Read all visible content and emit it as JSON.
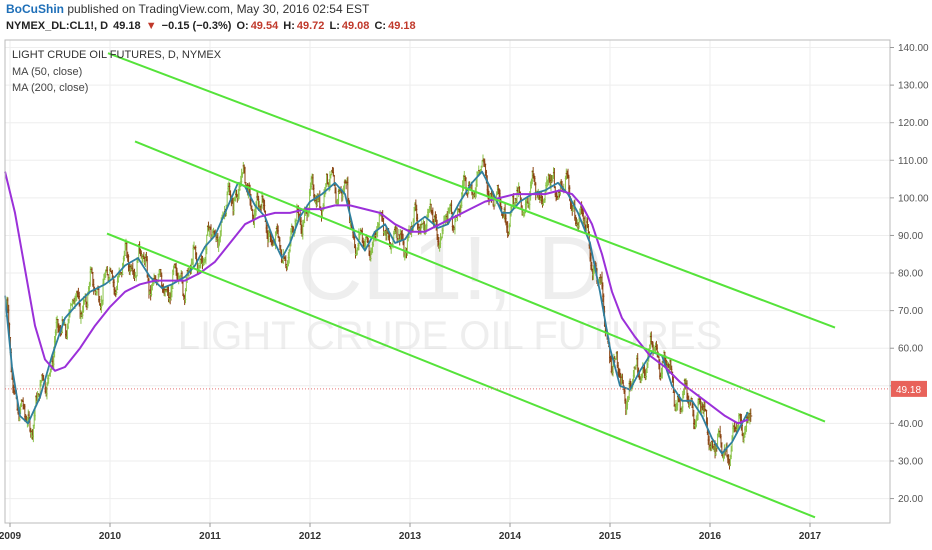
{
  "header": {
    "author": "BoCuShin",
    "published_text": "published on TradingView.com, May 30, 2016 02:54 EST"
  },
  "quote": {
    "symbol": "NYMEX_DL:CL1!, D",
    "last": "49.18",
    "arrow": "▼",
    "change": "−0.15 (−0.3%)",
    "open_label": "O:",
    "open": "49.54",
    "high_label": "H:",
    "high": "49.72",
    "low_label": "L:",
    "low": "49.08",
    "close_label": "C:",
    "close": "49.18"
  },
  "colors": {
    "up_bar": "#8bc34a",
    "down_bar": "#8b4513",
    "ma50": "#2f7f9e",
    "ma200": "#9b30d9",
    "channel": "#55e33a",
    "price_line": "#e57373",
    "price_label_bg": "#e8625a"
  },
  "chart_data": {
    "type": "line",
    "title": "LIGHT CRUDE OIL FUTURES, D, NYMEX",
    "watermark": {
      "symbol": "CL1!, D",
      "name": "LIGHT CRUDE OIL FUTURES"
    },
    "y_axis": {
      "range": [
        13.5,
        142
      ],
      "ticks": [
        {
          "value": 20,
          "label": "20.00"
        },
        {
          "value": 30,
          "label": "30.00"
        },
        {
          "value": 40,
          "label": "40.00"
        },
        {
          "value": 50,
          "label": "50.00"
        },
        {
          "value": 60,
          "label": "60.00"
        },
        {
          "value": 70,
          "label": "70.00"
        },
        {
          "value": 80,
          "label": "80.00"
        },
        {
          "value": 90,
          "label": "90.00"
        },
        {
          "value": 100,
          "label": "100.00"
        },
        {
          "value": 110,
          "label": "110.00"
        },
        {
          "value": 120,
          "label": "120.00"
        },
        {
          "value": 130,
          "label": "130.00"
        },
        {
          "value": 140,
          "label": "140.00"
        }
      ]
    },
    "x_axis": {
      "range": [
        2008.95,
        2017.8
      ],
      "ticks": [
        {
          "value": 2009,
          "label": "2009"
        },
        {
          "value": 2010,
          "label": "2010"
        },
        {
          "value": 2011,
          "label": "2011"
        },
        {
          "value": 2012,
          "label": "2012"
        },
        {
          "value": 2013,
          "label": "2013"
        },
        {
          "value": 2014,
          "label": "2014"
        },
        {
          "value": 2015,
          "label": "2015"
        },
        {
          "value": 2016,
          "label": "2016"
        },
        {
          "value": 2017,
          "label": "2017"
        }
      ]
    },
    "grid": true,
    "last_price": {
      "value": 49.18,
      "label": "49.18"
    },
    "series": [
      {
        "name": "MA (50, close)",
        "points": [
          [
            2008.95,
            74
          ],
          [
            2009.02,
            55
          ],
          [
            2009.1,
            42
          ],
          [
            2009.18,
            40
          ],
          [
            2009.3,
            47
          ],
          [
            2009.42,
            58
          ],
          [
            2009.55,
            68
          ],
          [
            2009.68,
            72
          ],
          [
            2009.8,
            75
          ],
          [
            2009.95,
            77
          ],
          [
            2010.05,
            79
          ],
          [
            2010.15,
            82
          ],
          [
            2010.28,
            84
          ],
          [
            2010.4,
            79
          ],
          [
            2010.52,
            76
          ],
          [
            2010.62,
            77
          ],
          [
            2010.75,
            79
          ],
          [
            2010.85,
            82
          ],
          [
            2010.95,
            87
          ],
          [
            2011.05,
            90
          ],
          [
            2011.15,
            96
          ],
          [
            2011.28,
            104
          ],
          [
            2011.35,
            103
          ],
          [
            2011.45,
            98
          ],
          [
            2011.55,
            95
          ],
          [
            2011.65,
            88
          ],
          [
            2011.72,
            84
          ],
          [
            2011.8,
            88
          ],
          [
            2011.9,
            95
          ],
          [
            2012.0,
            99
          ],
          [
            2012.12,
            101
          ],
          [
            2012.25,
            104
          ],
          [
            2012.35,
            101
          ],
          [
            2012.45,
            90
          ],
          [
            2012.55,
            86
          ],
          [
            2012.65,
            91
          ],
          [
            2012.75,
            93
          ],
          [
            2012.85,
            88
          ],
          [
            2012.95,
            89
          ],
          [
            2013.05,
            93
          ],
          [
            2013.15,
            95
          ],
          [
            2013.28,
            92
          ],
          [
            2013.38,
            93
          ],
          [
            2013.5,
            99
          ],
          [
            2013.62,
            104
          ],
          [
            2013.72,
            107
          ],
          [
            2013.82,
            102
          ],
          [
            2013.92,
            96
          ],
          [
            2014.0,
            96
          ],
          [
            2014.1,
            99
          ],
          [
            2014.22,
            101
          ],
          [
            2014.35,
            102
          ],
          [
            2014.48,
            104
          ],
          [
            2014.58,
            101
          ],
          [
            2014.68,
            96
          ],
          [
            2014.8,
            88
          ],
          [
            2014.9,
            75
          ],
          [
            2015.0,
            60
          ],
          [
            2015.1,
            50
          ],
          [
            2015.2,
            49
          ],
          [
            2015.3,
            54
          ],
          [
            2015.42,
            59
          ],
          [
            2015.52,
            58
          ],
          [
            2015.62,
            50
          ],
          [
            2015.72,
            46
          ],
          [
            2015.82,
            46
          ],
          [
            2015.92,
            42
          ],
          [
            2016.02,
            36
          ],
          [
            2016.12,
            32
          ],
          [
            2016.22,
            35
          ],
          [
            2016.3,
            39
          ],
          [
            2016.38,
            43
          ]
        ]
      },
      {
        "name": "MA (200, close)",
        "points": [
          [
            2008.95,
            107
          ],
          [
            2009.05,
            96
          ],
          [
            2009.15,
            81
          ],
          [
            2009.25,
            66
          ],
          [
            2009.35,
            57
          ],
          [
            2009.45,
            54
          ],
          [
            2009.55,
            55
          ],
          [
            2009.7,
            60
          ],
          [
            2009.85,
            66
          ],
          [
            2010.0,
            71
          ],
          [
            2010.15,
            75
          ],
          [
            2010.3,
            77
          ],
          [
            2010.45,
            78
          ],
          [
            2010.6,
            78
          ],
          [
            2010.75,
            78
          ],
          [
            2010.9,
            80
          ],
          [
            2011.05,
            83
          ],
          [
            2011.2,
            88
          ],
          [
            2011.35,
            93
          ],
          [
            2011.5,
            95
          ],
          [
            2011.65,
            96
          ],
          [
            2011.8,
            96
          ],
          [
            2011.95,
            97
          ],
          [
            2012.1,
            97
          ],
          [
            2012.25,
            98
          ],
          [
            2012.4,
            98
          ],
          [
            2012.55,
            97
          ],
          [
            2012.7,
            96
          ],
          [
            2012.85,
            93
          ],
          [
            2013.0,
            91
          ],
          [
            2013.15,
            91
          ],
          [
            2013.3,
            93
          ],
          [
            2013.45,
            95
          ],
          [
            2013.6,
            97
          ],
          [
            2013.75,
            99
          ],
          [
            2013.9,
            100
          ],
          [
            2014.05,
            101
          ],
          [
            2014.2,
            101
          ],
          [
            2014.35,
            101
          ],
          [
            2014.5,
            102
          ],
          [
            2014.62,
            101
          ],
          [
            2014.72,
            98
          ],
          [
            2014.82,
            93
          ],
          [
            2014.92,
            85
          ],
          [
            2015.02,
            75
          ],
          [
            2015.12,
            68
          ],
          [
            2015.25,
            63
          ],
          [
            2015.4,
            58
          ],
          [
            2015.55,
            55
          ],
          [
            2015.7,
            51
          ],
          [
            2015.85,
            48
          ],
          [
            2016.0,
            45
          ],
          [
            2016.15,
            42
          ],
          [
            2016.28,
            40
          ],
          [
            2016.38,
            41
          ]
        ]
      }
    ],
    "channel_lines": [
      {
        "from": [
          2009.98,
          138.5
        ],
        "to": [
          2017.25,
          65.5
        ]
      },
      {
        "from": [
          2010.25,
          115
        ],
        "to": [
          2017.15,
          40.5
        ]
      },
      {
        "from": [
          2009.97,
          90.5
        ],
        "to": [
          2017.05,
          15
        ]
      }
    ],
    "price_bars_description": "daily OHLC bars following the moving averages"
  }
}
